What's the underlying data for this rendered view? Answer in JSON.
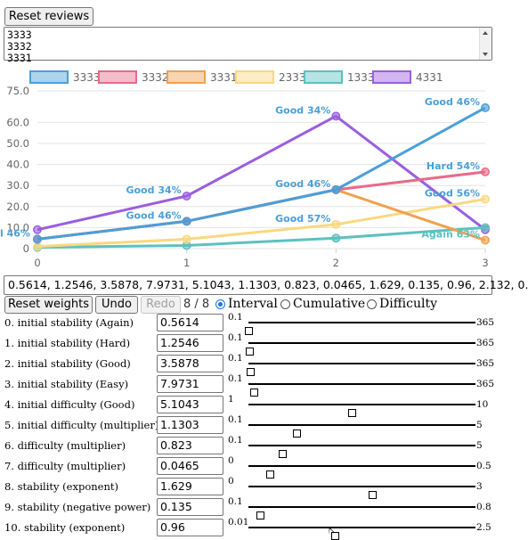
{
  "reset_reviews_label": "Reset reviews",
  "review_lines": [
    "3333",
    "3332",
    "3331"
  ],
  "chart_data": {
    "type": "line",
    "x": [
      0,
      1,
      2,
      3
    ],
    "x_ticks": [
      "0",
      "1",
      "2",
      "3"
    ],
    "y_ticks": [
      "0",
      "10.0",
      "20.0",
      "30.0",
      "40.0",
      "50.0",
      "60.0",
      "75.0"
    ],
    "ylim": [
      0,
      75
    ],
    "legend_position": "top",
    "grid": "horizontal",
    "series": [
      {
        "name": "3333",
        "color": "#4a9fd8",
        "values": [
          4.5,
          13,
          28,
          67
        ]
      },
      {
        "name": "3332",
        "color": "#e86a8a",
        "values": [
          4.5,
          13,
          28,
          36.5
        ]
      },
      {
        "name": "3331",
        "color": "#f0a050",
        "values": [
          4.5,
          13,
          28,
          4
        ]
      },
      {
        "name": "2333",
        "color": "#fad880",
        "values": [
          1,
          4.5,
          11.5,
          23.5
        ]
      },
      {
        "name": "1333",
        "color": "#5ec0c0",
        "values": [
          0.6,
          1.5,
          5,
          10
        ]
      },
      {
        "name": "4331",
        "color": "#9a5ee0",
        "values": [
          9,
          25,
          63,
          9
        ]
      }
    ],
    "annotations": [
      {
        "text": "Good 34%",
        "x": 1,
        "y": 25,
        "color": "#4a9fd8"
      },
      {
        "text": "Good 46%",
        "x": 1,
        "y": 13,
        "color": "#4a9fd8"
      },
      {
        "text": "Good 34%",
        "x": 2,
        "y": 63,
        "color": "#4a9fd8"
      },
      {
        "text": "Good 46%",
        "x": 2,
        "y": 28,
        "color": "#4a9fd8"
      },
      {
        "text": "Good 57%",
        "x": 2,
        "y": 11.5,
        "color": "#4a9fd8"
      },
      {
        "text": "Good 46%",
        "x": 3,
        "y": 67,
        "color": "#4a9fd8"
      },
      {
        "text": "Hard 54%",
        "x": 3,
        "y": 36.5,
        "color": "#4a9fd8"
      },
      {
        "text": "Good 56%",
        "x": 3,
        "y": 23.5,
        "color": "#4a9fd8"
      },
      {
        "text": "Again 63%",
        "x": 3,
        "y": 4,
        "color": "#5ec0c0"
      },
      {
        "text": "l 46%",
        "x": 0,
        "y": 4.5,
        "color": "#4a9fd8"
      }
    ]
  },
  "weights_value": "0.5614, 1.2546, 3.5878, 7.9731, 5.1043, 1.1303, 0.823, 0.0465, 1.629, 0.135, 0.96, 2.132, 0.",
  "reset_weights_label": "Reset weights",
  "undo_label": "Undo",
  "redo_label": "Redo",
  "history_count": "8 / 8",
  "view_options": [
    {
      "label": "Interval",
      "selected": true
    },
    {
      "label": "Cumulative",
      "selected": false
    },
    {
      "label": "Difficulty",
      "selected": false
    }
  ],
  "params": [
    {
      "label": "0. initial stability (Again)",
      "value": "0.5614",
      "min": "0.1",
      "max": "365",
      "fraction": 0.0012
    },
    {
      "label": "1. initial stability (Hard)",
      "value": "1.2546",
      "min": "0.1",
      "max": "365",
      "fraction": 0.0032
    },
    {
      "label": "2. initial stability (Good)",
      "value": "3.5878",
      "min": "0.1",
      "max": "365",
      "fraction": 0.0096
    },
    {
      "label": "3. initial stability (Easy)",
      "value": "7.9731",
      "min": "0.1",
      "max": "365",
      "fraction": 0.0216
    },
    {
      "label": "4. initial difficulty (Good)",
      "value": "5.1043",
      "min": "1",
      "max": "10",
      "fraction": 0.456
    },
    {
      "label": "5. initial difficulty (multiplier)",
      "value": "1.1303",
      "min": "0.1",
      "max": "5",
      "fraction": 0.21
    },
    {
      "label": "6. difficulty (multiplier)",
      "value": "0.823",
      "min": "0.1",
      "max": "5",
      "fraction": 0.1476
    },
    {
      "label": "7. difficulty (multiplier)",
      "value": "0.0465",
      "min": "0",
      "max": "0.5",
      "fraction": 0.093
    },
    {
      "label": "8. stability (exponent)",
      "value": "1.629",
      "min": "0",
      "max": "3",
      "fraction": 0.543
    },
    {
      "label": "9. stability (negative power)",
      "value": "0.135",
      "min": "0.1",
      "max": "0.8",
      "fraction": 0.05
    },
    {
      "label": "10. stability (exponent)",
      "value": "0.96",
      "min": "0.01",
      "max": "2.5",
      "fraction": 0.3815
    }
  ]
}
